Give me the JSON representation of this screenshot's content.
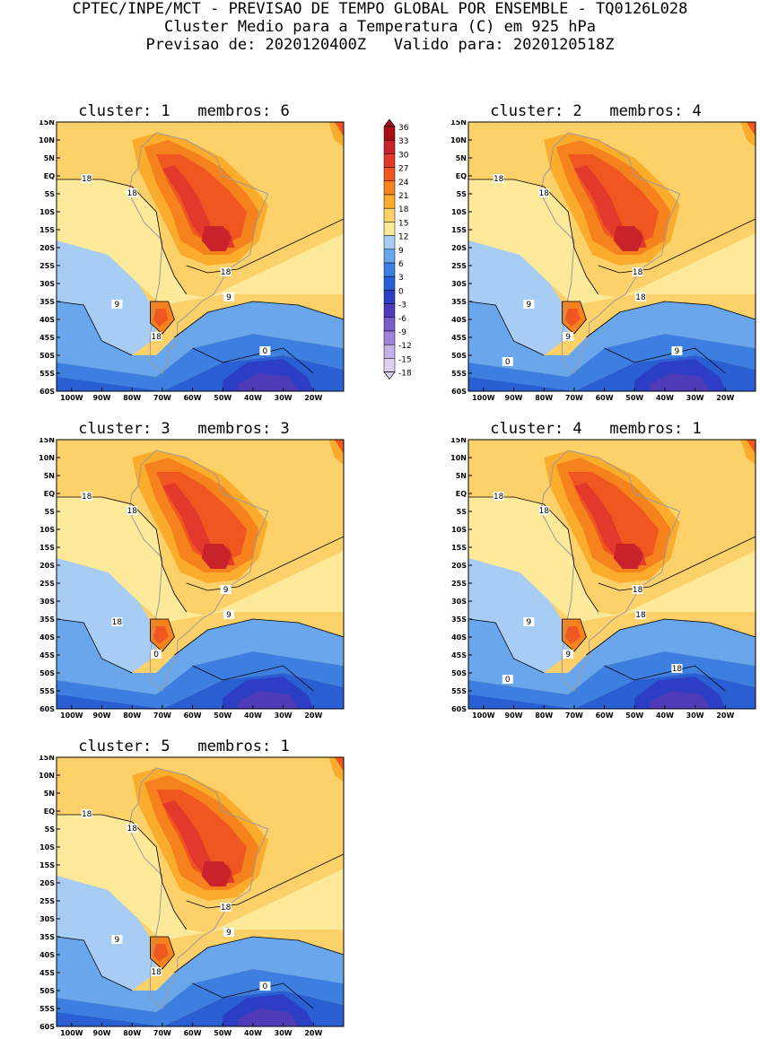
{
  "header": {
    "line1": "CPTEC/INPE/MCT - PREVISAO DE TEMPO GLOBAL POR ENSEMBLE - TQ0126L028",
    "line2": "Cluster Medio para a Temperatura (C) em 925 hPa",
    "line3": "Previsao de: 2020120400Z   Valido para: 2020120518Z"
  },
  "axes": {
    "lat_labels": [
      "15N",
      "10N",
      "5N",
      "EQ",
      "5S",
      "10S",
      "15S",
      "20S",
      "25S",
      "30S",
      "35S",
      "40S",
      "45S",
      "50S",
      "55S",
      "60S"
    ],
    "lon_labels": [
      "100W",
      "90W",
      "80W",
      "70W",
      "60W",
      "50W",
      "40W",
      "30W",
      "20W"
    ]
  },
  "colorbar": {
    "labels": [
      "36",
      "33",
      "30",
      "27",
      "24",
      "21",
      "18",
      "15",
      "12",
      "9",
      "6",
      "3",
      "0",
      "-3",
      "-6",
      "-9",
      "-12",
      "-15",
      "-18"
    ],
    "colors": [
      "#a50f15",
      "#c8232b",
      "#e3382c",
      "#f0561f",
      "#f5821c",
      "#fcac2c",
      "#fdd16a",
      "#fde99a",
      "#a8cdf5",
      "#6aa6ec",
      "#3d7fe0",
      "#2a5fd4",
      "#2c3fc4",
      "#4f3bb8",
      "#7a5cc9",
      "#9f85d9",
      "#c2b1e6",
      "#ddd1f0"
    ]
  },
  "panels": [
    {
      "title": "cluster: 1   membros: 6",
      "contour_labels": [
        "18",
        "18",
        "18",
        "9",
        "9",
        "18",
        "0"
      ]
    },
    {
      "title": "cluster: 2   membros: 4",
      "contour_labels": [
        "18",
        "18",
        "18",
        "9",
        "18",
        "9",
        "9",
        "0"
      ]
    },
    {
      "title": "cluster: 3   membros: 3",
      "contour_labels": [
        "18",
        "18",
        "9",
        "18",
        "9",
        "0"
      ]
    },
    {
      "title": "cluster: 4   membros: 1",
      "contour_labels": [
        "18",
        "18",
        "18",
        "9",
        "18",
        "9",
        "18",
        "0"
      ]
    },
    {
      "title": "cluster: 5   membros: 1",
      "contour_labels": [
        "18",
        "18",
        "18",
        "9",
        "9",
        "18",
        "0"
      ]
    }
  ]
}
